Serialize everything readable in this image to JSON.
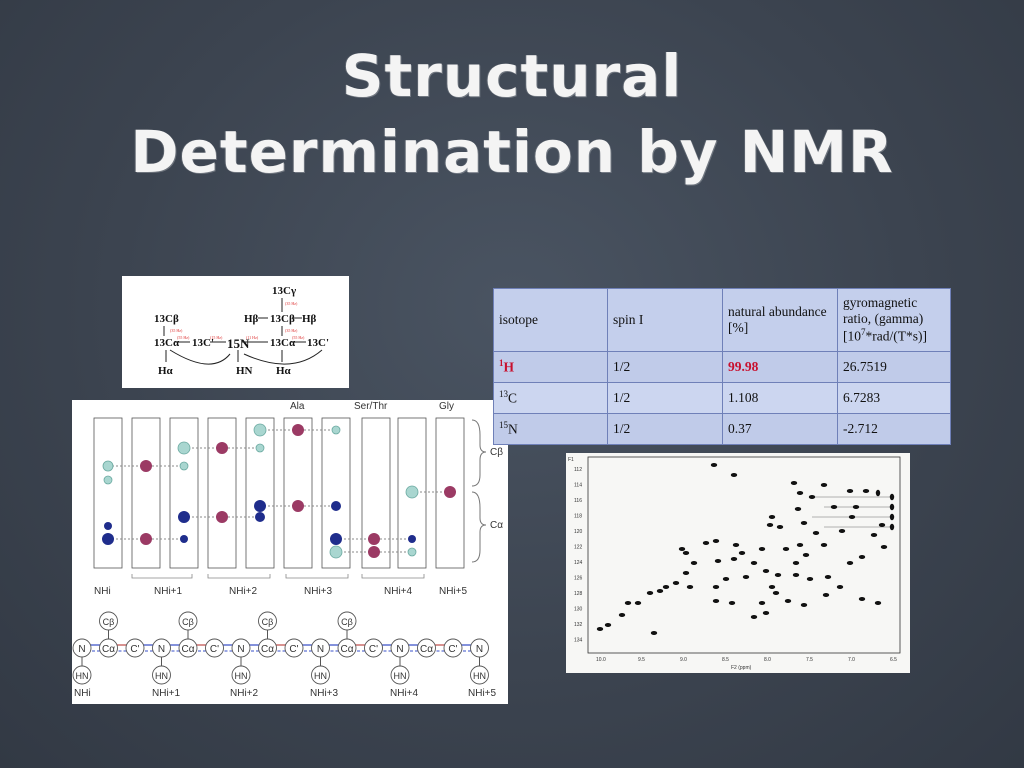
{
  "slide": {
    "title_line1": "Structural",
    "title_line2": "Determination by NMR"
  },
  "topology": {
    "atoms": [
      "13Cβ",
      "13Cα",
      "13C'",
      "15N",
      "13Cγ",
      "Hβ",
      "13Cβ",
      "Hβ",
      "13Cα",
      "13C'",
      "Hα",
      "HN",
      "Hα"
    ]
  },
  "strips": {
    "residue_labels": [
      "Ala",
      "Ser/Thr",
      "Gly"
    ],
    "right_labels": [
      "Cβ",
      "Cα"
    ],
    "bottom_labels": [
      "NHi",
      "NHi+1",
      "NHi+2",
      "NHi+3",
      "NHi+4",
      "NHi+5"
    ],
    "chain_atoms": [
      "N",
      "Cα",
      "C'",
      "N",
      "Cα",
      "C'",
      "N",
      "Cα",
      "C'",
      "N",
      "Cα",
      "C'",
      "N",
      "Cα",
      "C'",
      "N"
    ],
    "cb_label": "Cβ",
    "hn_label": "HN",
    "colors": {
      "purple": "#9b3a64",
      "navy": "#1f2d8c",
      "teal": "#a9d6d0"
    }
  },
  "table": {
    "headers": [
      "isotope",
      "spin I",
      "natural abundance [%]",
      "gyromagnetic ratio, (gamma) [10^7*rad/(T*s)]"
    ],
    "header_parts": {
      "gyro_a": "gyromagnetic ratio, (gamma) [10",
      "gyro_sup": "7",
      "gyro_b": "*rad/(T*s)]"
    },
    "rows": [
      {
        "iso_mass": "1",
        "iso_sym": "H",
        "spin": "1/2",
        "abundance": "99.98",
        "gamma": "26.7519"
      },
      {
        "iso_mass": "13",
        "iso_sym": "C",
        "spin": "1/2",
        "abundance": "1.108",
        "gamma": "6.7283"
      },
      {
        "iso_mass": "15",
        "iso_sym": "N",
        "spin": "1/2",
        "abundance": "0.37",
        "gamma": "-2.712"
      }
    ],
    "highlight_color": "#c8102e"
  },
  "spectrum": {
    "y_axis_label": "F1",
    "x_axis_label": "F2 (ppm)",
    "x_ticks": [
      "10.0",
      "9.5",
      "9.0",
      "8.5",
      "8.0",
      "7.5",
      "7.0",
      "6.5"
    ],
    "y_ticks": [
      "112",
      "114",
      "116",
      "118",
      "120",
      "122",
      "124",
      "126",
      "128",
      "130",
      "132",
      "134"
    ]
  }
}
